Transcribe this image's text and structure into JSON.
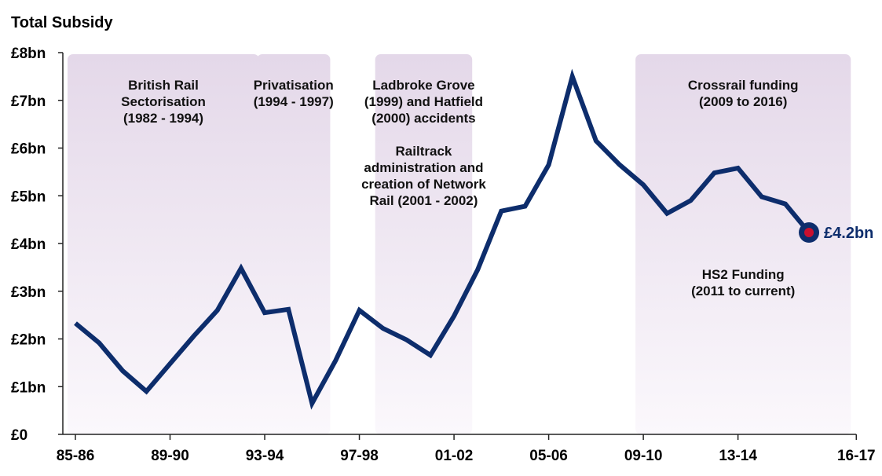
{
  "chart_data": {
    "type": "line",
    "title": "Total Subsidy",
    "xlabel": "",
    "ylabel": "",
    "ylim": [
      0,
      8
    ],
    "y_ticks": [
      {
        "value": 0,
        "label": "£0"
      },
      {
        "value": 1,
        "label": "£1bn"
      },
      {
        "value": 2,
        "label": "£2bn"
      },
      {
        "value": 3,
        "label": "£3bn"
      },
      {
        "value": 4,
        "label": "£4bn"
      },
      {
        "value": 5,
        "label": "£5bn"
      },
      {
        "value": 6,
        "label": "£6bn"
      },
      {
        "value": 7,
        "label": "£7bn"
      },
      {
        "value": 8,
        "label": "£8bn"
      }
    ],
    "x": [
      "85-86",
      "86-87",
      "87-88",
      "88-89",
      "89-90",
      "90-91",
      "91-92",
      "92-93",
      "93-94",
      "94-95",
      "95-96",
      "96-97",
      "97-98",
      "98-99",
      "99-00",
      "00-01",
      "01-02",
      "02-03",
      "03-04",
      "04-05",
      "05-06",
      "06-07",
      "07-08",
      "08-09",
      "09-10",
      "10-11",
      "11-12",
      "12-13",
      "13-14",
      "14-15",
      "15-16",
      "16-17"
    ],
    "x_tick_labels": [
      "85-86",
      "89-90",
      "93-94",
      "97-98",
      "01-02",
      "05-06",
      "09-10",
      "13-14",
      "16-17"
    ],
    "x_tick_marks": [
      "85-86",
      "89-90",
      "93-94",
      "97-98",
      "01-02",
      "05-06",
      "09-10",
      "13-14",
      "17-18"
    ],
    "series": [
      {
        "values": [
          2.33,
          1.92,
          1.33,
          0.9,
          1.48,
          2.06,
          2.6,
          3.48,
          2.55,
          2.62,
          0.65,
          1.55,
          2.6,
          2.22,
          1.98,
          1.66,
          2.48,
          3.45,
          4.68,
          4.78,
          5.65,
          7.5,
          6.15,
          5.65,
          5.23,
          4.63,
          4.9,
          5.48,
          5.58,
          4.98,
          4.83,
          4.23
        ],
        "color": "#0d2d6c"
      }
    ],
    "bands": [
      {
        "from": "85-86",
        "to": "93-94",
        "lines": [
          "British Rail",
          "Sectorisation",
          "(1982 - 1994)"
        ]
      },
      {
        "from": "93-94",
        "to": "96-97",
        "lines": [
          "Privatisation",
          "(1994 - 1997)"
        ]
      },
      {
        "from": "98-99",
        "to": "02-03",
        "lines": [
          "Ladbroke Grove",
          "(1999) and Hatfield",
          "(2000) accidents",
          "",
          "Railtrack",
          "administration and",
          "creation of Network",
          "Rail (2001 - 2002)"
        ]
      },
      {
        "from": "09-10",
        "to": "17-18",
        "lines": [
          "Crossrail funding",
          "(2009 to 2016)"
        ],
        "lines_lower": [
          "HS2 Funding",
          "(2011 to current)"
        ]
      }
    ],
    "end_label": "£4.2bn",
    "grid": false,
    "legend": "none"
  },
  "colors": {
    "line": "#0d2d6c",
    "band_top": "#e4d8e9",
    "band_bottom": "#fbf8fc",
    "end_dot": "#c8102e",
    "axis": "#222222"
  }
}
